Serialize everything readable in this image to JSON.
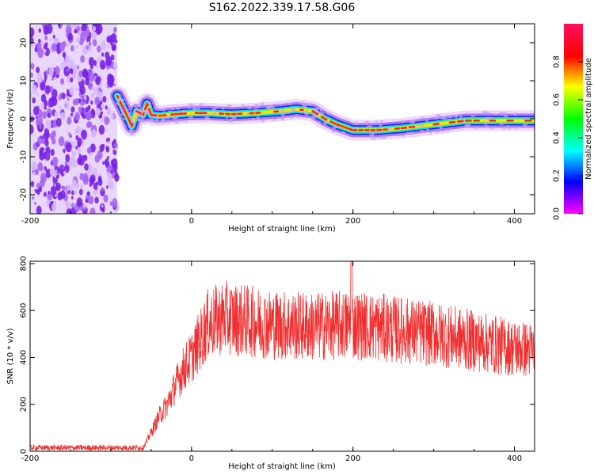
{
  "title": "S162.2022.339.17.58.G06",
  "chart_data": [
    {
      "type": "heatmap",
      "xlabel": "Height of straight line (km)",
      "ylabel": "Frequency (Hz)",
      "xlim": [
        -200,
        425
      ],
      "ylim": [
        -25,
        25
      ],
      "xticks": [
        "-200",
        "0",
        "200",
        "400"
      ],
      "yticks": [
        "20",
        "10",
        "0",
        "-10",
        "-20"
      ],
      "colorbar": {
        "label": "Normalized spectral amplitude",
        "range": [
          0,
          1
        ],
        "ticks": [
          "0.0",
          "0.2",
          "0.4",
          "0.6",
          "0.8"
        ],
        "colormap": "hsv"
      },
      "noise_region_x": [
        -200,
        -92
      ],
      "ridge": {
        "x": [
          -92,
          -85,
          -78,
          -74,
          -68,
          -60,
          -55,
          -50,
          -40,
          -20,
          0,
          20,
          50,
          80,
          110,
          130,
          150,
          165,
          180,
          200,
          230,
          260,
          300,
          340,
          380,
          425
        ],
        "frequency_hz": [
          6,
          3,
          0,
          -2,
          2,
          1,
          4,
          1,
          0.8,
          1.2,
          1.5,
          1.5,
          1.2,
          1.5,
          2,
          2.5,
          2,
          0,
          -1.5,
          -3,
          -3,
          -2.5,
          -1.5,
          -0.5,
          -0.5,
          -0.5
        ]
      }
    },
    {
      "type": "line",
      "xlabel": "Height of straight line (km)",
      "ylabel": "SNR (10 * v/v)",
      "xlim": [
        -200,
        425
      ],
      "ylim": [
        0,
        810
      ],
      "xticks": [
        "-200",
        "0",
        "200",
        "400"
      ],
      "yticks": [
        "800",
        "600",
        "400",
        "200",
        "0"
      ],
      "color": "#f03030",
      "series": [
        {
          "x": [
            -200,
            -100,
            -60,
            -50,
            -40,
            -30,
            -20,
            -10,
            0,
            10,
            20,
            40,
            60,
            100,
            150,
            200,
            250,
            300,
            350,
            400,
            425
          ],
          "values": [
            15,
            15,
            15,
            80,
            150,
            200,
            280,
            350,
            400,
            470,
            540,
            570,
            560,
            540,
            530,
            540,
            520,
            500,
            470,
            440,
            430
          ]
        }
      ],
      "spike": {
        "x": 198,
        "value": 810
      }
    }
  ]
}
